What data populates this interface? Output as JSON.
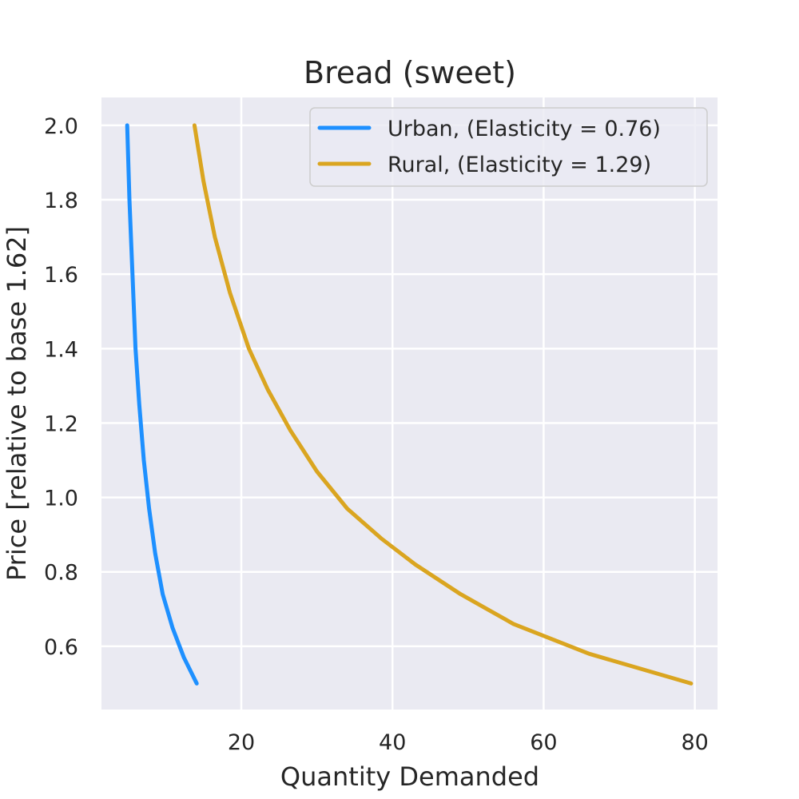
{
  "chart_data": {
    "type": "line",
    "title": "Bread (sweet)",
    "xlabel": "Quantity Demanded",
    "ylabel": "Price [relative to base 1.62]",
    "xlim": [
      1.5,
      83
    ],
    "ylim": [
      0.43,
      2.075
    ],
    "xticks": [
      20,
      40,
      60,
      80
    ],
    "yticks": [
      0.6,
      0.8,
      1.0,
      1.2,
      1.4,
      1.6,
      1.8,
      2.0
    ],
    "xtick_labels": [
      "20",
      "40",
      "60",
      "80"
    ],
    "ytick_labels": [
      "0.6",
      "0.8",
      "1.0",
      "1.2",
      "1.4",
      "1.6",
      "1.8",
      "2.0"
    ],
    "grid": true,
    "legend_position": "top-right",
    "background_color": "#eaeaf2",
    "series": [
      {
        "name": "Urban, (Elasticity = 0.76)",
        "color": "#1e90ff",
        "x": [
          4.9,
          5.2,
          5.6,
          6.0,
          6.5,
          7.1,
          7.8,
          8.6,
          9.6,
          10.9,
          12.4,
          14.1
        ],
        "y": [
          2.0,
          1.8,
          1.6,
          1.4,
          1.25,
          1.1,
          0.97,
          0.85,
          0.74,
          0.65,
          0.57,
          0.5
        ]
      },
      {
        "name": "Rural, (Elasticity = 1.29)",
        "color": "#daa520",
        "x": [
          13.8,
          15.0,
          16.5,
          18.5,
          21.0,
          23.5,
          26.5,
          30.0,
          34.0,
          38.5,
          43.0,
          49.0,
          56.0,
          66.0,
          79.5
        ],
        "y": [
          2.0,
          1.85,
          1.7,
          1.55,
          1.4,
          1.29,
          1.18,
          1.07,
          0.97,
          0.89,
          0.82,
          0.74,
          0.66,
          0.58,
          0.5
        ]
      }
    ]
  }
}
